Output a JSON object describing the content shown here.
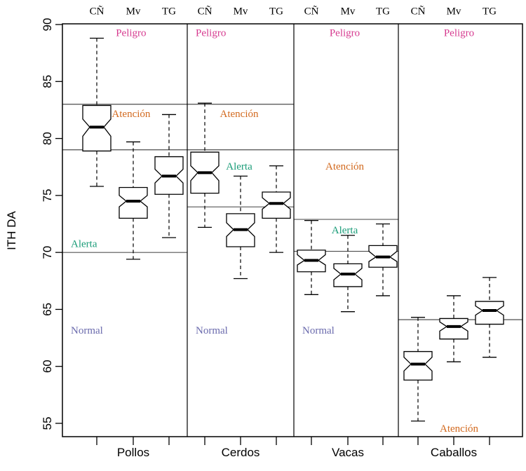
{
  "chart_data": {
    "type": "boxplot",
    "title": "",
    "xlabel": "",
    "ylabel": "ITH DA",
    "ylim": [
      53.8,
      90.1
    ],
    "yticks": [
      55,
      60,
      65,
      70,
      75,
      80,
      85,
      90
    ],
    "grid": false,
    "legend": "none",
    "notched": true,
    "subgroup_labels": [
      "CÑ",
      "Mv",
      "TG"
    ],
    "groups": [
      {
        "name": "Pollos",
        "boxes": [
          {
            "label": "CÑ",
            "whisker_low": 75.8,
            "q1": 78.9,
            "median": 81.0,
            "q3": 82.9,
            "whisker_high": 88.8,
            "notch": [
              80.2,
              81.7
            ]
          },
          {
            "label": "Mv",
            "whisker_low": 69.4,
            "q1": 73.0,
            "median": 74.5,
            "q3": 75.7,
            "whisker_high": 79.7,
            "notch": [
              74.0,
              75.0
            ]
          },
          {
            "label": "TG",
            "whisker_low": 71.3,
            "q1": 75.1,
            "median": 76.7,
            "q3": 78.4,
            "whisker_high": 82.1,
            "notch": [
              76.1,
              77.3
            ]
          }
        ],
        "thresholds": [
          83.0,
          79.0,
          70.0
        ],
        "zone_labels": [
          {
            "text": "Peligro",
            "value": 89.3,
            "color": "#d63a8f",
            "anchor": "right"
          },
          {
            "text": "Atención",
            "value": 82.2,
            "color": "#d2691e",
            "anchor": "right"
          },
          {
            "text": "Alerta",
            "value": 70.8,
            "color": "#1a9c78",
            "anchor": "left"
          },
          {
            "text": "Normal",
            "value": 63.2,
            "color": "#6a6aad",
            "anchor": "left"
          }
        ]
      },
      {
        "name": "Cerdos",
        "boxes": [
          {
            "label": "CÑ",
            "whisker_low": 72.2,
            "q1": 75.2,
            "median": 77.0,
            "q3": 78.8,
            "whisker_high": 83.1,
            "notch": [
              76.3,
              77.6
            ]
          },
          {
            "label": "Mv",
            "whisker_low": 67.7,
            "q1": 70.5,
            "median": 72.0,
            "q3": 73.4,
            "whisker_high": 76.7,
            "notch": [
              71.4,
              72.6
            ]
          },
          {
            "label": "TG",
            "whisker_low": 70.0,
            "q1": 73.0,
            "median": 74.3,
            "q3": 75.3,
            "whisker_high": 77.6,
            "notch": [
              73.8,
              74.8
            ]
          }
        ],
        "thresholds": [
          83.0,
          79.0,
          74.0
        ],
        "zone_labels": [
          {
            "text": "Peligro",
            "value": 89.3,
            "color": "#d63a8f",
            "anchor": "left"
          },
          {
            "text": "Atención",
            "value": 82.2,
            "color": "#d2691e",
            "anchor": "center"
          },
          {
            "text": "Alerta",
            "value": 77.6,
            "color": "#1a9c78",
            "anchor": "center"
          },
          {
            "text": "Normal",
            "value": 63.2,
            "color": "#6a6aad",
            "anchor": "left"
          }
        ]
      },
      {
        "name": "Vacas",
        "boxes": [
          {
            "label": "CÑ",
            "whisker_low": 66.3,
            "q1": 68.3,
            "median": 69.3,
            "q3": 70.2,
            "whisker_high": 72.8,
            "notch": [
              68.9,
              69.8
            ]
          },
          {
            "label": "Mv",
            "whisker_low": 64.8,
            "q1": 67.0,
            "median": 68.1,
            "q3": 69.0,
            "whisker_high": 71.5,
            "notch": [
              67.6,
              68.6
            ]
          },
          {
            "label": "TG",
            "whisker_low": 66.2,
            "q1": 68.7,
            "median": 69.6,
            "q3": 70.6,
            "whisker_high": 72.5,
            "notch": [
              69.2,
              70.1
            ]
          }
        ],
        "thresholds": [
          79.0,
          72.9,
          70.1
        ],
        "zone_labels": [
          {
            "text": "Peligro",
            "value": 89.3,
            "color": "#d63a8f",
            "anchor": "center"
          },
          {
            "text": "Atención",
            "value": 77.6,
            "color": "#d2691e",
            "anchor": "center"
          },
          {
            "text": "Alerta",
            "value": 72.0,
            "color": "#1a9c78",
            "anchor": "center"
          },
          {
            "text": "Normal",
            "value": 63.2,
            "color": "#6a6aad",
            "anchor": "left"
          }
        ]
      },
      {
        "name": "Caballos",
        "boxes": [
          {
            "label": "CÑ",
            "whisker_low": 55.2,
            "q1": 58.8,
            "median": 60.2,
            "q3": 61.3,
            "whisker_high": 64.3,
            "notch": [
              59.6,
              60.8
            ]
          },
          {
            "label": "Mv",
            "whisker_low": 60.4,
            "q1": 62.4,
            "median": 63.5,
            "q3": 64.2,
            "whisker_high": 66.2,
            "notch": [
              63.1,
              63.9
            ]
          },
          {
            "label": "TG",
            "whisker_low": 60.8,
            "q1": 63.7,
            "median": 64.9,
            "q3": 65.7,
            "whisker_high": 67.8,
            "notch": [
              64.5,
              65.3
            ]
          }
        ],
        "thresholds": [
          64.1
        ],
        "zone_labels": [
          {
            "text": "Peligro",
            "value": 89.3,
            "color": "#d63a8f",
            "anchor": "center"
          },
          {
            "text": "Atención",
            "value": 54.6,
            "color": "#d2691e",
            "anchor": "center"
          }
        ]
      }
    ]
  }
}
